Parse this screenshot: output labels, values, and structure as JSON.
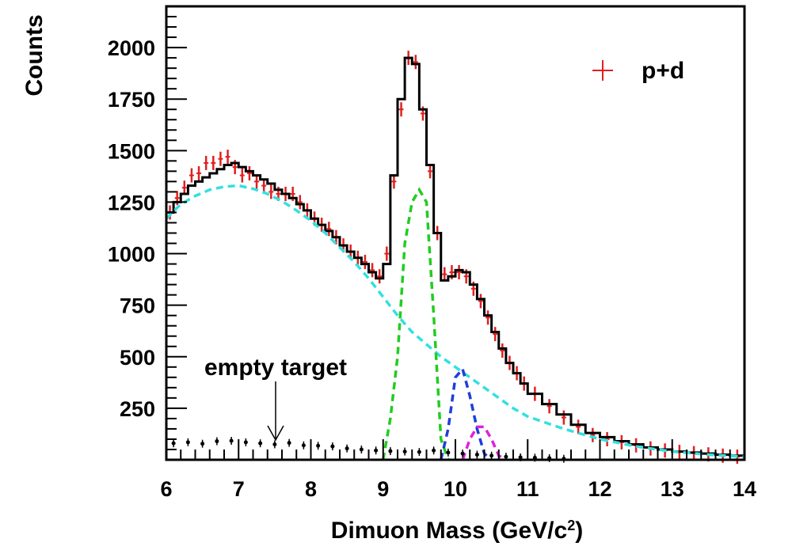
{
  "chart_data": {
    "type": "line",
    "title": "",
    "xlabel": "Dimuon Mass (GeV/c",
    "xlabel_sup": "2",
    "xlabel_close": ")",
    "ylabel": "Counts",
    "xlim": [
      6,
      14
    ],
    "ylim": [
      0,
      2200
    ],
    "x_ticks": [
      6,
      7,
      8,
      9,
      10,
      11,
      12,
      13,
      14
    ],
    "y_ticks": [
      250,
      500,
      750,
      1000,
      1250,
      1500,
      1750,
      2000
    ],
    "grid": false,
    "legend": {
      "position": "top-right",
      "entries": [
        {
          "label": "p+d",
          "color": "#e02020"
        }
      ]
    },
    "annotations": [
      {
        "text": "empty target",
        "arrow_to": [
          7.5,
          80
        ]
      }
    ],
    "series": [
      {
        "role": "data-points",
        "style": "points",
        "color": "#e02020",
        "x": [
          6.05,
          6.15,
          6.25,
          6.35,
          6.45,
          6.55,
          6.65,
          6.75,
          6.85,
          6.95,
          7.05,
          7.15,
          7.25,
          7.35,
          7.45,
          7.55,
          7.65,
          7.75,
          7.85,
          7.95,
          8.05,
          8.15,
          8.25,
          8.35,
          8.45,
          8.55,
          8.65,
          8.75,
          8.85,
          8.95,
          9.05,
          9.15,
          9.25,
          9.35,
          9.45,
          9.55,
          9.65,
          9.75,
          9.85,
          9.95,
          10.05,
          10.15,
          10.25,
          10.35,
          10.45,
          10.55,
          10.65,
          10.75,
          10.85,
          10.95,
          11.1,
          11.3,
          11.5,
          11.7,
          11.9,
          12.1,
          12.3,
          12.5,
          12.7,
          12.9,
          13.1,
          13.3,
          13.5,
          13.7,
          13.9
        ],
        "y": [
          1200,
          1270,
          1320,
          1380,
          1390,
          1440,
          1440,
          1460,
          1470,
          1420,
          1380,
          1390,
          1350,
          1330,
          1300,
          1290,
          1290,
          1290,
          1250,
          1210,
          1170,
          1140,
          1120,
          1080,
          1040,
          1010,
          980,
          960,
          920,
          890,
          1000,
          1350,
          1700,
          1950,
          1930,
          1680,
          1400,
          1100,
          900,
          910,
          910,
          890,
          830,
          770,
          690,
          610,
          530,
          470,
          420,
          370,
          320,
          260,
          205,
          160,
          120,
          100,
          85,
          70,
          55,
          45,
          38,
          32,
          26,
          20,
          15
        ]
      },
      {
        "role": "total-fit",
        "style": "step",
        "color": "#000000",
        "x": [
          6.0,
          6.1,
          6.2,
          6.3,
          6.4,
          6.5,
          6.6,
          6.7,
          6.8,
          6.9,
          7.0,
          7.1,
          7.2,
          7.3,
          7.4,
          7.5,
          7.6,
          7.7,
          7.8,
          7.9,
          8.0,
          8.1,
          8.2,
          8.3,
          8.4,
          8.5,
          8.6,
          8.7,
          8.8,
          8.9,
          9.0,
          9.1,
          9.2,
          9.3,
          9.4,
          9.5,
          9.6,
          9.7,
          9.8,
          9.9,
          10.0,
          10.1,
          10.2,
          10.3,
          10.4,
          10.5,
          10.6,
          10.7,
          10.8,
          10.9,
          11.0,
          11.2,
          11.4,
          11.6,
          11.8,
          12.0,
          12.2,
          12.4,
          12.6,
          12.8,
          13.0,
          13.2,
          13.4,
          13.6,
          13.8,
          14.0
        ],
        "y": [
          1200,
          1250,
          1290,
          1330,
          1350,
          1370,
          1390,
          1410,
          1430,
          1440,
          1420,
          1400,
          1380,
          1360,
          1340,
          1310,
          1290,
          1270,
          1240,
          1210,
          1170,
          1140,
          1110,
          1080,
          1040,
          1010,
          980,
          950,
          910,
          880,
          950,
          1380,
          1750,
          1950,
          1920,
          1700,
          1430,
          1100,
          870,
          890,
          920,
          910,
          850,
          780,
          700,
          620,
          540,
          470,
          420,
          370,
          320,
          270,
          220,
          170,
          130,
          110,
          90,
          75,
          60,
          50,
          40,
          35,
          30,
          25,
          20,
          18
        ]
      },
      {
        "role": "continuum",
        "style": "dashed",
        "color": "#33e0e0",
        "x": [
          6.0,
          6.2,
          6.4,
          6.6,
          6.8,
          7.0,
          7.2,
          7.4,
          7.6,
          7.8,
          8.0,
          8.2,
          8.4,
          8.6,
          8.8,
          9.0,
          9.2,
          9.4,
          9.6,
          9.8,
          10.0,
          10.2,
          10.4,
          10.6,
          10.8,
          11.0,
          11.5,
          12.0,
          12.5,
          13.0,
          13.5,
          14.0
        ],
        "y": [
          1170,
          1240,
          1280,
          1310,
          1325,
          1330,
          1315,
          1290,
          1255,
          1210,
          1160,
          1100,
          1030,
          960,
          880,
          790,
          700,
          620,
          560,
          500,
          450,
          400,
          350,
          300,
          250,
          210,
          150,
          100,
          65,
          40,
          25,
          15
        ]
      },
      {
        "role": "peak-1",
        "style": "dashed",
        "color": "#22cc22",
        "x": [
          9.0,
          9.1,
          9.2,
          9.3,
          9.4,
          9.5,
          9.6,
          9.7,
          9.8,
          9.9
        ],
        "y": [
          0,
          200,
          500,
          1050,
          1250,
          1310,
          1250,
          700,
          100,
          0
        ]
      },
      {
        "role": "peak-2",
        "style": "dashed",
        "color": "#1f3fd8",
        "x": [
          9.8,
          9.9,
          10.0,
          10.1,
          10.2,
          10.3,
          10.4,
          10.5
        ],
        "y": [
          0,
          150,
          400,
          440,
          310,
          150,
          30,
          0
        ]
      },
      {
        "role": "peak-3",
        "style": "dashed",
        "color": "#e020e0",
        "x": [
          10.1,
          10.2,
          10.3,
          10.4,
          10.5,
          10.6,
          10.7
        ],
        "y": [
          0,
          100,
          160,
          160,
          100,
          20,
          0
        ]
      },
      {
        "role": "empty-target",
        "style": "points",
        "color": "#000000",
        "x": [
          6.1,
          6.3,
          6.5,
          6.7,
          6.9,
          7.1,
          7.3,
          7.5,
          7.7,
          7.9,
          8.1,
          8.3,
          8.5,
          8.7,
          8.9,
          9.1,
          9.3,
          9.5,
          9.7,
          9.9,
          10.1,
          10.3,
          10.5,
          10.7,
          10.9,
          11.1,
          11.3,
          11.5
        ],
        "y": [
          80,
          85,
          78,
          90,
          92,
          85,
          80,
          75,
          82,
          70,
          68,
          65,
          55,
          50,
          45,
          42,
          40,
          38,
          45,
          35,
          30,
          25,
          20,
          15,
          12,
          10,
          8,
          5
        ]
      }
    ]
  }
}
